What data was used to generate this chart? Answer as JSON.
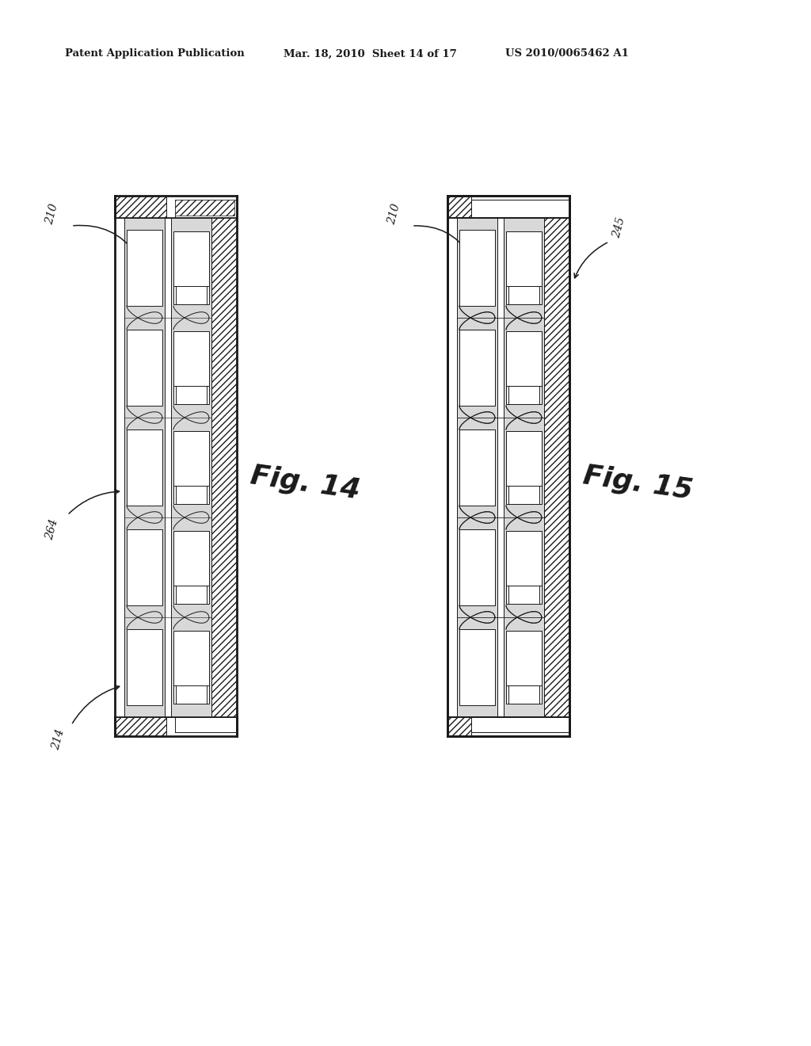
{
  "bg_color": "#ffffff",
  "dc": "#1a1a1a",
  "header_text1": "Patent Application Publication",
  "header_text2": "Mar. 18, 2010  Sheet 14 of 17",
  "header_text3": "US 2010/0065462 A1",
  "fig14_label": "Fig. 14",
  "fig15_label": "Fig. 15",
  "label_210_left": "210",
  "label_210_right": "210",
  "label_264": "264",
  "label_214": "214",
  "label_245": "245",
  "stipple_color": "#d8d8d8",
  "hatch_color": "#444444",
  "lw_bold": 2.0,
  "lw_mid": 1.2,
  "lw_thin": 0.7
}
